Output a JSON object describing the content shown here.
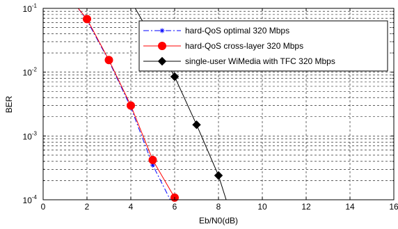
{
  "chart_data": {
    "type": "line",
    "xlabel": "Eb/N0(dB)",
    "ylabel": "BER",
    "yscale": "log",
    "xlim": [
      0,
      16
    ],
    "ylim": [
      0.0001,
      0.1
    ],
    "xticks": [
      "0",
      "2",
      "4",
      "6",
      "8",
      "10",
      "12",
      "14",
      "16"
    ],
    "yticks": [
      {
        "base": "10",
        "exp": "-1",
        "value": 0.1
      },
      {
        "base": "10",
        "exp": "-2",
        "value": 0.01
      },
      {
        "base": "10",
        "exp": "-3",
        "value": 0.001
      },
      {
        "base": "10",
        "exp": "-4",
        "value": 0.0001
      }
    ],
    "grid": true,
    "legend_position": "top-right",
    "series": [
      {
        "name": "hard-QoS optimal 320 Mbps",
        "color": "#0000ff",
        "line_style": "dashdot",
        "marker": "asterisk",
        "x": [
          1.6,
          2,
          3,
          4,
          5,
          5.8
        ],
        "y": [
          0.1,
          0.065,
          0.015,
          0.0028,
          0.00035,
          0.0001
        ],
        "marker_x": [
          2,
          3,
          4,
          5
        ],
        "marker_y": [
          0.065,
          0.015,
          0.0028,
          0.00035
        ]
      },
      {
        "name": "hard-QoS cross-layer 320 Mbps",
        "color": "#ff0000",
        "line_style": "solid",
        "marker": "circle",
        "x": [
          1.6,
          2,
          3,
          4,
          5,
          6
        ],
        "y": [
          0.1,
          0.068,
          0.0155,
          0.003,
          0.00042,
          0.000108
        ],
        "marker_x": [
          2,
          3,
          4,
          5,
          6
        ],
        "marker_y": [
          0.068,
          0.0155,
          0.003,
          0.00042,
          0.000108
        ]
      },
      {
        "name": "single-user WiMedia with TFC 320 Mbps",
        "color": "#000000",
        "line_style": "solid",
        "marker": "diamond",
        "x": [
          4.2,
          6,
          7,
          8,
          8.35
        ],
        "y": [
          0.1,
          0.0085,
          0.0015,
          0.00024,
          0.0001
        ],
        "marker_x": [
          6,
          7,
          8
        ],
        "marker_y": [
          0.0085,
          0.0015,
          0.00024
        ]
      }
    ]
  }
}
